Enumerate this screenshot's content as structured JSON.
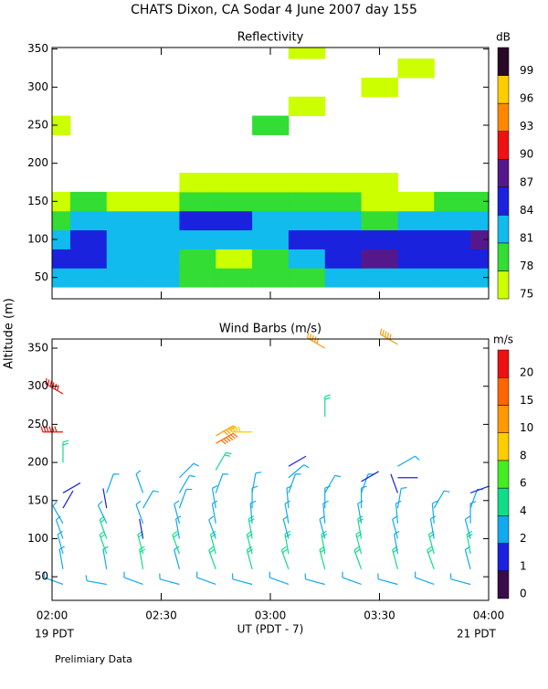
{
  "page": {
    "title": "CHATS Dixon, CA  Sodar   4 June 2007  day 155",
    "y_label": "Altitude (m)",
    "x_label": "UT  (PDT - 7)",
    "left_note": "19 PDT",
    "right_note": "21 PDT",
    "footer": "Prelimiary Data"
  },
  "chart_data": [
    {
      "type": "heatmap",
      "title": "Reflectivity",
      "xlim": [
        120,
        240
      ],
      "ylim": [
        22,
        352
      ],
      "yticks": [
        50,
        100,
        150,
        200,
        250,
        300,
        350
      ],
      "x": [
        120,
        130,
        140,
        150,
        160,
        170,
        180,
        190,
        200,
        210,
        220,
        230,
        240
      ],
      "y": [
        50,
        75,
        100,
        125,
        150,
        175,
        250,
        275,
        300,
        325,
        350
      ],
      "values": [
        [
          81,
          81,
          81,
          81,
          78,
          78,
          78,
          78,
          81,
          81,
          81,
          81,
          81
        ],
        [
          84,
          84,
          81,
          81,
          78,
          75,
          78,
          81,
          84,
          87,
          84,
          84,
          84
        ],
        [
          81,
          84,
          81,
          81,
          81,
          81,
          81,
          84,
          84,
          84,
          84,
          84,
          87
        ],
        [
          78,
          81,
          81,
          81,
          84,
          84,
          81,
          81,
          81,
          78,
          81,
          81,
          81
        ],
        [
          75,
          78,
          75,
          75,
          78,
          78,
          78,
          78,
          78,
          75,
          75,
          78,
          78
        ],
        [
          null,
          null,
          null,
          null,
          75,
          75,
          75,
          75,
          75,
          75,
          null,
          null,
          null
        ],
        [
          75,
          null,
          null,
          null,
          null,
          null,
          78,
          null,
          null,
          null,
          null,
          null,
          null
        ],
        [
          null,
          null,
          null,
          null,
          null,
          null,
          null,
          75,
          null,
          null,
          null,
          null,
          null
        ],
        [
          null,
          null,
          null,
          null,
          null,
          null,
          null,
          null,
          null,
          75,
          null,
          null,
          null
        ],
        [
          null,
          null,
          null,
          null,
          null,
          null,
          null,
          null,
          null,
          null,
          75,
          null,
          null
        ],
        [
          null,
          null,
          null,
          null,
          null,
          null,
          null,
          75,
          null,
          null,
          null,
          null,
          null
        ]
      ],
      "colorbar": {
        "title": "dB",
        "levels": [
          75,
          78,
          81,
          84,
          87,
          90,
          93,
          96,
          99
        ],
        "colors": [
          "#ccff00",
          "#33dd33",
          "#11bbee",
          "#1a22dd",
          "#55188b",
          "#ee1111",
          "#ff8800",
          "#ffcc00",
          "#2a0828"
        ]
      }
    },
    {
      "type": "barbs",
      "title": "Wind Barbs (m/s)",
      "xlim": [
        120,
        240
      ],
      "ylim": [
        19,
        362
      ],
      "yticks": [
        50,
        100,
        150,
        200,
        250,
        300,
        350
      ],
      "xticks": [
        {
          "value": 120,
          "label": "02:00"
        },
        {
          "value": 150,
          "label": "02:30"
        },
        {
          "value": 180,
          "label": "03:00"
        },
        {
          "value": 210,
          "label": "03:30"
        },
        {
          "value": 240,
          "label": "04:00"
        }
      ],
      "barbs": [
        {
          "x": 123,
          "altitude": [
            40,
            60,
            80,
            100,
            120,
            140,
            160,
            200,
            240,
            290
          ],
          "speed": [
            3,
            3,
            3,
            2,
            2,
            1,
            1,
            5,
            20,
            20
          ],
          "direction": [
            290,
            350,
            345,
            340,
            330,
            30,
            60,
            0,
            270,
            300
          ]
        },
        {
          "x": 135,
          "altitude": [
            40,
            60,
            80,
            100,
            120,
            140,
            160
          ],
          "speed": [
            3,
            3,
            4,
            4,
            3,
            1,
            2
          ],
          "direction": [
            280,
            350,
            340,
            340,
            335,
            350,
            20
          ]
        },
        {
          "x": 145,
          "altitude": [
            40,
            60,
            80,
            100,
            120,
            140,
            160
          ],
          "speed": [
            3,
            4,
            4,
            1,
            2,
            2,
            2
          ],
          "direction": [
            290,
            350,
            345,
            350,
            340,
            30,
            340
          ]
        },
        {
          "x": 155,
          "altitude": [
            40,
            60,
            80,
            100,
            120,
            140,
            160,
            180
          ],
          "speed": [
            3,
            3,
            4,
            3,
            2,
            3,
            2,
            2
          ],
          "direction": [
            285,
            345,
            340,
            350,
            345,
            20,
            30,
            45
          ]
        },
        {
          "x": 165,
          "altitude": [
            40,
            60,
            80,
            100,
            120,
            140,
            160,
            190,
            225,
            235
          ],
          "speed": [
            3,
            4,
            4,
            3,
            3,
            2,
            2,
            5,
            18,
            10
          ],
          "direction": [
            290,
            340,
            345,
            340,
            350,
            350,
            20,
            30,
            60,
            60
          ]
        },
        {
          "x": 175,
          "altitude": [
            40,
            60,
            80,
            100,
            120,
            140,
            160,
            240
          ],
          "speed": [
            3,
            4,
            4,
            4,
            3,
            3,
            2,
            9
          ],
          "direction": [
            285,
            345,
            345,
            350,
            355,
            0,
            10,
            270
          ]
        },
        {
          "x": 185,
          "altitude": [
            40,
            60,
            80,
            100,
            120,
            140,
            160,
            180,
            195
          ],
          "speed": [
            3,
            4,
            4,
            3,
            2,
            2,
            2,
            2,
            1
          ],
          "direction": [
            290,
            340,
            350,
            345,
            350,
            355,
            20,
            50,
            60
          ]
        },
        {
          "x": 195,
          "altitude": [
            40,
            60,
            80,
            100,
            120,
            140,
            160,
            260,
            350
          ],
          "speed": [
            3,
            4,
            4,
            3,
            3,
            2,
            2,
            5,
            10
          ],
          "direction": [
            285,
            345,
            350,
            345,
            355,
            0,
            30,
            0,
            300
          ]
        },
        {
          "x": 205,
          "altitude": [
            40,
            60,
            80,
            100,
            120,
            140,
            160,
            175
          ],
          "speed": [
            3,
            4,
            4,
            4,
            3,
            2,
            2,
            1
          ],
          "direction": [
            290,
            340,
            345,
            350,
            350,
            0,
            20,
            60
          ]
        },
        {
          "x": 215,
          "altitude": [
            40,
            60,
            80,
            100,
            120,
            140,
            160,
            180,
            195,
            355
          ],
          "speed": [
            3,
            4,
            3,
            3,
            3,
            2,
            1,
            1,
            2,
            10
          ],
          "direction": [
            285,
            345,
            350,
            345,
            355,
            10,
            340,
            90,
            60,
            300
          ]
        },
        {
          "x": 225,
          "altitude": [
            40,
            60,
            80,
            100,
            120,
            140
          ],
          "speed": [
            3,
            4,
            4,
            3,
            3,
            2
          ],
          "direction": [
            290,
            340,
            345,
            350,
            355,
            30
          ]
        },
        {
          "x": 235,
          "altitude": [
            40,
            60,
            80,
            100,
            120,
            140,
            160
          ],
          "speed": [
            3,
            3,
            4,
            3,
            3,
            2,
            1
          ],
          "direction": [
            285,
            345,
            350,
            345,
            0,
            20,
            70
          ]
        }
      ],
      "colorbar": {
        "title": "m/s",
        "levels": [
          0,
          1,
          2,
          4,
          6,
          8,
          10,
          15,
          20
        ],
        "colors": [
          "#3a0a4a",
          "#1a22dd",
          "#11aaee",
          "#11dd88",
          "#44ee22",
          "#ffcc00",
          "#ff9900",
          "#ff6600",
          "#ee1111"
        ]
      }
    }
  ]
}
